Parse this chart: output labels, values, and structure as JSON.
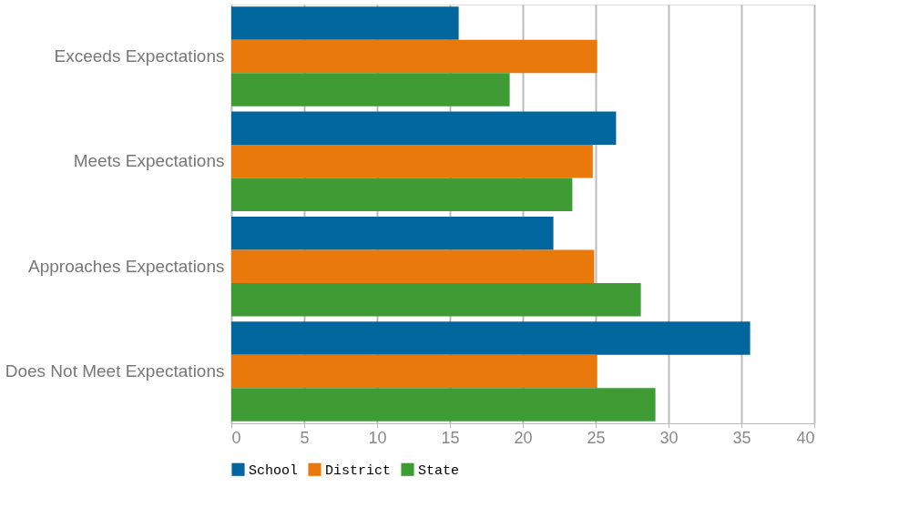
{
  "chart_data": {
    "type": "bar",
    "orientation": "horizontal",
    "categories": [
      "Exceeds Expectations",
      "Meets Expectations",
      "Approaches Expectations",
      "Does Not Meet Expectations"
    ],
    "series": [
      {
        "name": "School",
        "color": "#00669e",
        "values": [
          15.6,
          26.4,
          22.1,
          35.6
        ]
      },
      {
        "name": "District",
        "color": "#e8790a",
        "values": [
          25.1,
          24.8,
          24.9,
          25.1
        ]
      },
      {
        "name": "State",
        "color": "#3f9c35",
        "values": [
          19.1,
          23.4,
          28.1,
          29.1
        ]
      }
    ],
    "xlim": [
      0,
      40
    ],
    "xticks": [
      0,
      5,
      10,
      15,
      20,
      25,
      30,
      35,
      40
    ],
    "grid": "x",
    "legend": "bottom"
  }
}
